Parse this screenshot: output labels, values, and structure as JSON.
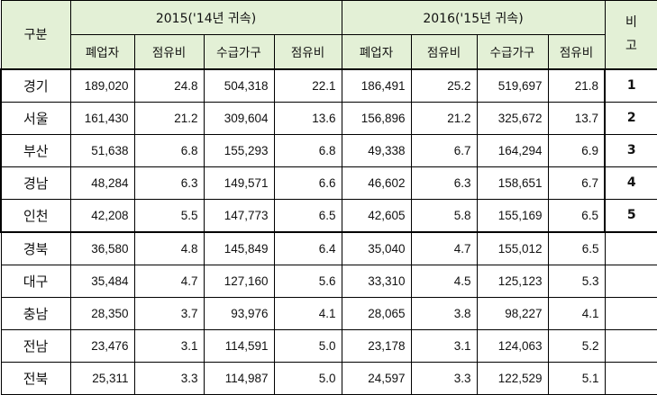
{
  "headers": {
    "category": "구분",
    "year_2015": "2015('14년 귀속)",
    "year_2016": "2016('15년 귀속)",
    "remarks": "비\n고",
    "sub": [
      "폐업자",
      "점유비",
      "수급가구",
      "점유비",
      "폐업자",
      "점유비",
      "수급가구",
      "점유비"
    ]
  },
  "rows": [
    {
      "region": "경기",
      "c15": "189,020",
      "s15": "24.8",
      "h15": "504,318",
      "r15": "22.1",
      "c16": "186,491",
      "s16": "25.2",
      "h16": "519,697",
      "r16": "21.8",
      "note": "1"
    },
    {
      "region": "서울",
      "c15": "161,430",
      "s15": "21.2",
      "h15": "309,604",
      "r15": "13.6",
      "c16": "156,896",
      "s16": "21.2",
      "h16": "325,672",
      "r16": "13.7",
      "note": "2"
    },
    {
      "region": "부산",
      "c15": "51,638",
      "s15": "6.8",
      "h15": "155,293",
      "r15": "6.8",
      "c16": "49,338",
      "s16": "6.7",
      "h16": "164,294",
      "r16": "6.9",
      "note": "3"
    },
    {
      "region": "경남",
      "c15": "48,284",
      "s15": "6.3",
      "h15": "149,571",
      "r15": "6.6",
      "c16": "46,602",
      "s16": "6.3",
      "h16": "158,651",
      "r16": "6.7",
      "note": "4"
    },
    {
      "region": "인천",
      "c15": "42,208",
      "s15": "5.5",
      "h15": "147,773",
      "r15": "6.5",
      "c16": "42,605",
      "s16": "5.8",
      "h16": "155,169",
      "r16": "6.5",
      "note": "5"
    },
    {
      "region": "경북",
      "c15": "36,580",
      "s15": "4.8",
      "h15": "145,849",
      "r15": "6.4",
      "c16": "35,040",
      "s16": "4.7",
      "h16": "155,012",
      "r16": "6.5",
      "note": ""
    },
    {
      "region": "대구",
      "c15": "35,484",
      "s15": "4.7",
      "h15": "127,160",
      "r15": "5.6",
      "c16": "33,310",
      "s16": "4.5",
      "h16": "125,123",
      "r16": "5.3",
      "note": ""
    },
    {
      "region": "충남",
      "c15": "28,350",
      "s15": "3.7",
      "h15": "93,976",
      "r15": "4.1",
      "c16": "28,065",
      "s16": "3.8",
      "h16": "98,227",
      "r16": "4.1",
      "note": ""
    },
    {
      "region": "전남",
      "c15": "23,476",
      "s15": "3.1",
      "h15": "114,591",
      "r15": "5.0",
      "c16": "23,178",
      "s16": "3.1",
      "h16": "124,063",
      "r16": "5.2",
      "note": ""
    },
    {
      "region": "전북",
      "c15": "25,311",
      "s15": "3.3",
      "h15": "114,987",
      "r15": "5.0",
      "c16": "24,597",
      "s16": "3.3",
      "h16": "122,529",
      "r16": "5.1",
      "note": ""
    }
  ]
}
